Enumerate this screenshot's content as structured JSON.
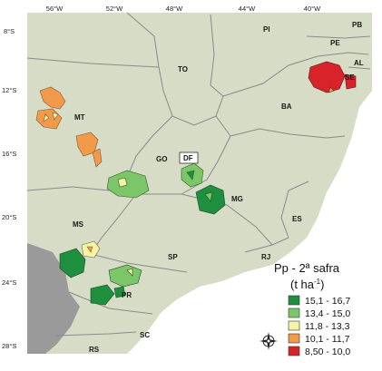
{
  "longitudes": [
    "56°W",
    "52°W",
    "48°W",
    "44°W",
    "40°W"
  ],
  "latitudes": [
    "8°S",
    "12°S",
    "16°S",
    "20°S",
    "24°S",
    "28°S"
  ],
  "states": {
    "PI": "PI",
    "PB": "PB",
    "PE": "PE",
    "AL": "AL",
    "SE": "SE",
    "TO": "TO",
    "BA": "BA",
    "MT": "MT",
    "GO": "GO",
    "DF": "DF",
    "MG": "MG",
    "ES": "ES",
    "MS": "MS",
    "SP": "SP",
    "RJ": "RJ",
    "PR": "PR",
    "SC": "SC",
    "RS": "RS"
  },
  "legend": {
    "title": "Pp - 2ª safra",
    "unit_base": "(t ha",
    "unit_exp": "-1",
    "unit_close": ")",
    "items": [
      {
        "label": "15,1 - 16,7",
        "color": "#1e8f3e"
      },
      {
        "label": "13,4 - 15,0",
        "color": "#7cc66a"
      },
      {
        "label": "11,8 - 13,3",
        "color": "#f6f3a6"
      },
      {
        "label": "10,1 - 11,7",
        "color": "#f29a4a"
      },
      {
        "label": "8,50 - 10,0",
        "color": "#d8232a"
      }
    ]
  },
  "colors": {
    "land": "#d6dcc6",
    "border": "#8a8a8a",
    "ocean": "#ffffff",
    "neighbor": "#9a9a9a"
  }
}
